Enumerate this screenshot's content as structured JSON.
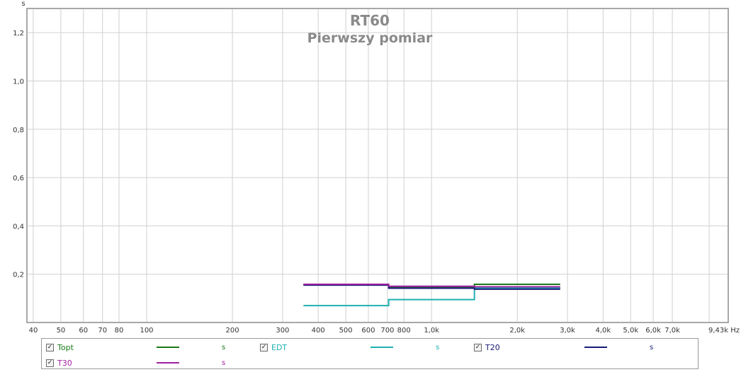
{
  "chart_data": {
    "type": "line",
    "title": "RT60",
    "subtitle": "Pierwszy pomiar",
    "ylabel": "s",
    "xlabel": "Hz",
    "xscale": "log",
    "xlim": [
      38,
      11000
    ],
    "ylim": [
      0.0,
      1.3
    ],
    "grid": true,
    "legend_position": "bottom",
    "x_ticks": [
      {
        "value": 40,
        "label": "40"
      },
      {
        "value": 50,
        "label": "50"
      },
      {
        "value": 60,
        "label": "60"
      },
      {
        "value": 70,
        "label": "70"
      },
      {
        "value": 80,
        "label": "80"
      },
      {
        "value": 100,
        "label": "100"
      },
      {
        "value": 200,
        "label": "200"
      },
      {
        "value": 300,
        "label": "300"
      },
      {
        "value": 400,
        "label": "400"
      },
      {
        "value": 500,
        "label": "500"
      },
      {
        "value": 600,
        "label": "600"
      },
      {
        "value": 700,
        "label": "700"
      },
      {
        "value": 800,
        "label": "800"
      },
      {
        "value": 1000,
        "label": "1,0k"
      },
      {
        "value": 2000,
        "label": "2,0k"
      },
      {
        "value": 3000,
        "label": "3,0k"
      },
      {
        "value": 4000,
        "label": "4,0k"
      },
      {
        "value": 5000,
        "label": "5,0k"
      },
      {
        "value": 6000,
        "label": "6,0k"
      },
      {
        "value": 7000,
        "label": "7,0k"
      },
      {
        "value": 9430,
        "label": "9,43k Hz"
      }
    ],
    "y_ticks": [
      {
        "value": 0.2,
        "label": "0,2"
      },
      {
        "value": 0.4,
        "label": "0,4"
      },
      {
        "value": 0.6,
        "label": "0,6"
      },
      {
        "value": 0.8,
        "label": "0,8"
      },
      {
        "value": 1.0,
        "label": "1,0"
      },
      {
        "value": 1.2,
        "label": "1,2"
      }
    ],
    "bands": [
      {
        "center": 500,
        "low": 355,
        "high": 707
      },
      {
        "center": 1000,
        "low": 707,
        "high": 1414
      },
      {
        "center": 2000,
        "low": 1414,
        "high": 2828
      }
    ],
    "series": [
      {
        "name": "Topt",
        "unit": "s",
        "color": "#1a7a1a",
        "values": [
          0.157,
          0.148,
          0.158
        ]
      },
      {
        "name": "EDT",
        "unit": "s",
        "color": "#20b0b0",
        "values": [
          0.07,
          0.095,
          0.142
        ]
      },
      {
        "name": "T20",
        "unit": "s",
        "color": "#1a1a7a",
        "values": [
          0.155,
          0.142,
          0.138
        ]
      },
      {
        "name": "T30",
        "unit": "s",
        "color": "#a020a0",
        "values": [
          0.158,
          0.15,
          0.148
        ]
      }
    ]
  }
}
